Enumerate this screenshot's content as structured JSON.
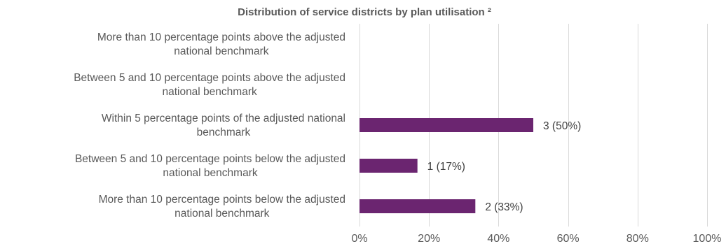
{
  "chart_data": {
    "type": "bar",
    "orientation": "horizontal",
    "title": "Distribution of service districts by plan utilisation ²",
    "xlabel": "",
    "ylabel": "",
    "categories": [
      [
        "More than 10 percentage points above the adjusted",
        "national benchmark"
      ],
      [
        "Between 5 and 10 percentage points above the adjusted",
        "national benchmark"
      ],
      [
        "Within 5 percentage points of the adjusted national",
        "benchmark"
      ],
      [
        "Between 5 and 10 percentage points below the adjusted",
        "national benchmark"
      ],
      [
        "More than 10 percentage points below the adjusted",
        "national benchmark"
      ]
    ],
    "values": [
      0,
      0,
      0.5,
      0.1667,
      0.3333
    ],
    "data_labels": [
      "",
      "",
      "3 (50%)",
      "1 (17%)",
      "2 (33%)"
    ],
    "xlim": [
      0,
      1
    ],
    "xticks": [
      0,
      0.2,
      0.4,
      0.6,
      0.8,
      1.0
    ],
    "xtick_labels": [
      "0%",
      "20%",
      "40%",
      "60%",
      "80%",
      "100%"
    ],
    "grid": true,
    "legend": "none",
    "colors": {
      "bar": "#6b2570",
      "grid": "#d9d9d9",
      "text": "#595959"
    }
  }
}
